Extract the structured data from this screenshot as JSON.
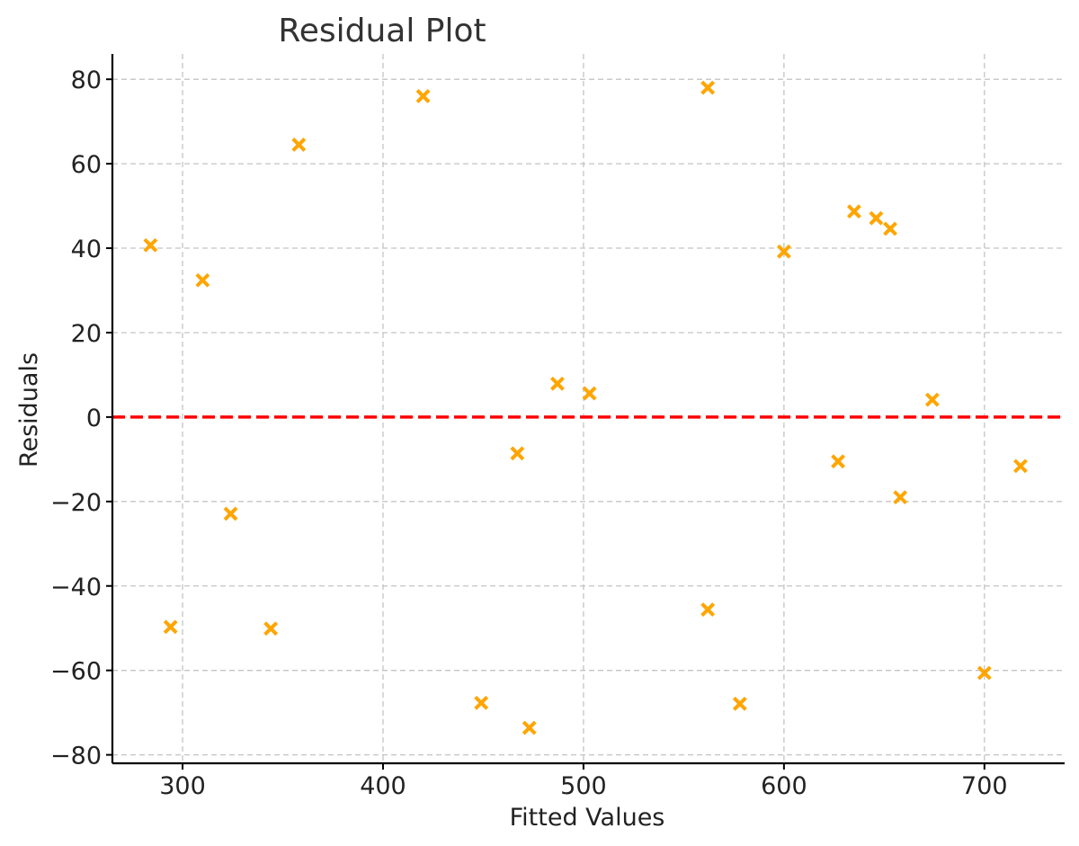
{
  "chart_data": {
    "type": "scatter",
    "title": "Residual Plot",
    "xlabel": "Fitted Values",
    "ylabel": "Residuals",
    "xlim": [
      265,
      740
    ],
    "ylim": [
      -82,
      86
    ],
    "x_ticks": [
      300,
      400,
      500,
      600,
      700
    ],
    "x_tick_labels": [
      "300",
      "400",
      "500",
      "600",
      "700"
    ],
    "y_ticks": [
      -80,
      -60,
      -40,
      -20,
      0,
      20,
      40,
      60,
      80
    ],
    "y_tick_labels": [
      "−80",
      "−60",
      "−40",
      "−20",
      "0",
      "20",
      "40",
      "60",
      "80"
    ],
    "grid": true,
    "marker": "x",
    "marker_color": "#FFA500",
    "reference_line": {
      "y": 0,
      "color": "#FF0000",
      "style": "dashed"
    },
    "points": [
      {
        "x": 284,
        "y": 40.7
      },
      {
        "x": 294,
        "y": -49.7
      },
      {
        "x": 310,
        "y": 32.4
      },
      {
        "x": 324,
        "y": -22.9
      },
      {
        "x": 344,
        "y": -50.1
      },
      {
        "x": 358,
        "y": 64.5
      },
      {
        "x": 420,
        "y": 76.0
      },
      {
        "x": 449,
        "y": -67.7
      },
      {
        "x": 467,
        "y": -8.6
      },
      {
        "x": 473,
        "y": -73.6
      },
      {
        "x": 487,
        "y": 7.9
      },
      {
        "x": 503,
        "y": 5.6
      },
      {
        "x": 562,
        "y": 78.0
      },
      {
        "x": 562,
        "y": -45.6
      },
      {
        "x": 578,
        "y": -67.9
      },
      {
        "x": 600,
        "y": 39.2
      },
      {
        "x": 627,
        "y": -10.5
      },
      {
        "x": 635,
        "y": 48.7
      },
      {
        "x": 646,
        "y": 47.1
      },
      {
        "x": 653,
        "y": 44.6
      },
      {
        "x": 658,
        "y": -19.0
      },
      {
        "x": 674,
        "y": 4.1
      },
      {
        "x": 700,
        "y": -60.6
      },
      {
        "x": 718,
        "y": -11.6
      }
    ]
  }
}
